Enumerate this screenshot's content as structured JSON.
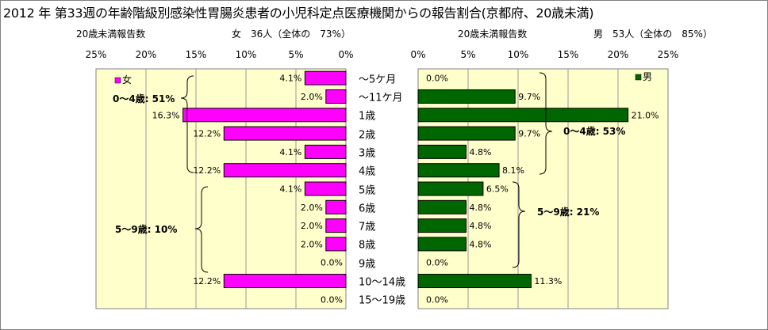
{
  "title": "2012 年 第33週の年齢階級別感染性胃腸炎患者の小児科定点医療機関からの報告割合(京都府、20歳未満)",
  "left": {
    "subtitle_left": "20歳未満報告数",
    "subtitle_right": "女　36人（全体の　73%）",
    "legend": "女",
    "ticks": [
      "25%",
      "20%",
      "15%",
      "10%",
      "5%",
      "0%"
    ],
    "annotation_1": "0〜4歳: 51%",
    "annotation_2": "5〜9歳: 10%"
  },
  "right": {
    "subtitle_left": "20歳未満報告数",
    "subtitle_right": "男　53人（全体の　85%）",
    "legend": "男",
    "ticks": [
      "0%",
      "5%",
      "10%",
      "15%",
      "20%",
      "25%"
    ],
    "annotation_1": "0〜4歳: 53%",
    "annotation_2": "5〜9歳: 21%"
  },
  "colors": {
    "female": "#ff00ff",
    "male": "#006600",
    "background": "#ffffcc",
    "grid": "#9a9a9a"
  },
  "chart_data": [
    {
      "type": "bar",
      "orientation": "horizontal",
      "title": "女",
      "categories": [
        "〜5ケ月",
        "〜11ケ月",
        "1歳",
        "2歳",
        "3歳",
        "4歳",
        "5歳",
        "6歳",
        "7歳",
        "8歳",
        "9歳",
        "10〜14歳",
        "15〜19歳"
      ],
      "series": [
        {
          "name": "女",
          "values": [
            4.1,
            2.0,
            16.3,
            12.2,
            4.1,
            12.2,
            4.1,
            2.0,
            2.0,
            2.0,
            0.0,
            12.2,
            0.0
          ]
        }
      ],
      "value_labels": [
        "4.1%",
        "2.0%",
        "16.3%",
        "12.2%",
        "4.1%",
        "12.2%",
        "4.1%",
        "2.0%",
        "2.0%",
        "2.0%",
        "0.0%",
        "12.2%",
        "0.0%"
      ],
      "xlim": [
        0,
        25
      ],
      "direction": "reversed",
      "grid": true,
      "legend": "top-left"
    },
    {
      "type": "bar",
      "orientation": "horizontal",
      "title": "男",
      "categories": [
        "〜5ケ月",
        "〜11ケ月",
        "1歳",
        "2歳",
        "3歳",
        "4歳",
        "5歳",
        "6歳",
        "7歳",
        "8歳",
        "9歳",
        "10〜14歳",
        "15〜19歳"
      ],
      "series": [
        {
          "name": "男",
          "values": [
            0.0,
            9.7,
            21.0,
            9.7,
            4.8,
            8.1,
            6.5,
            4.8,
            4.8,
            4.8,
            0.0,
            11.3,
            0.0
          ]
        }
      ],
      "value_labels": [
        "0.0%",
        "9.7%",
        "21.0%",
        "9.7%",
        "4.8%",
        "8.1%",
        "6.5%",
        "4.8%",
        "4.8%",
        "4.8%",
        "0.0%",
        "11.3%",
        "0.0%"
      ],
      "xlim": [
        0,
        25
      ],
      "grid": true,
      "legend": "top-right"
    }
  ]
}
